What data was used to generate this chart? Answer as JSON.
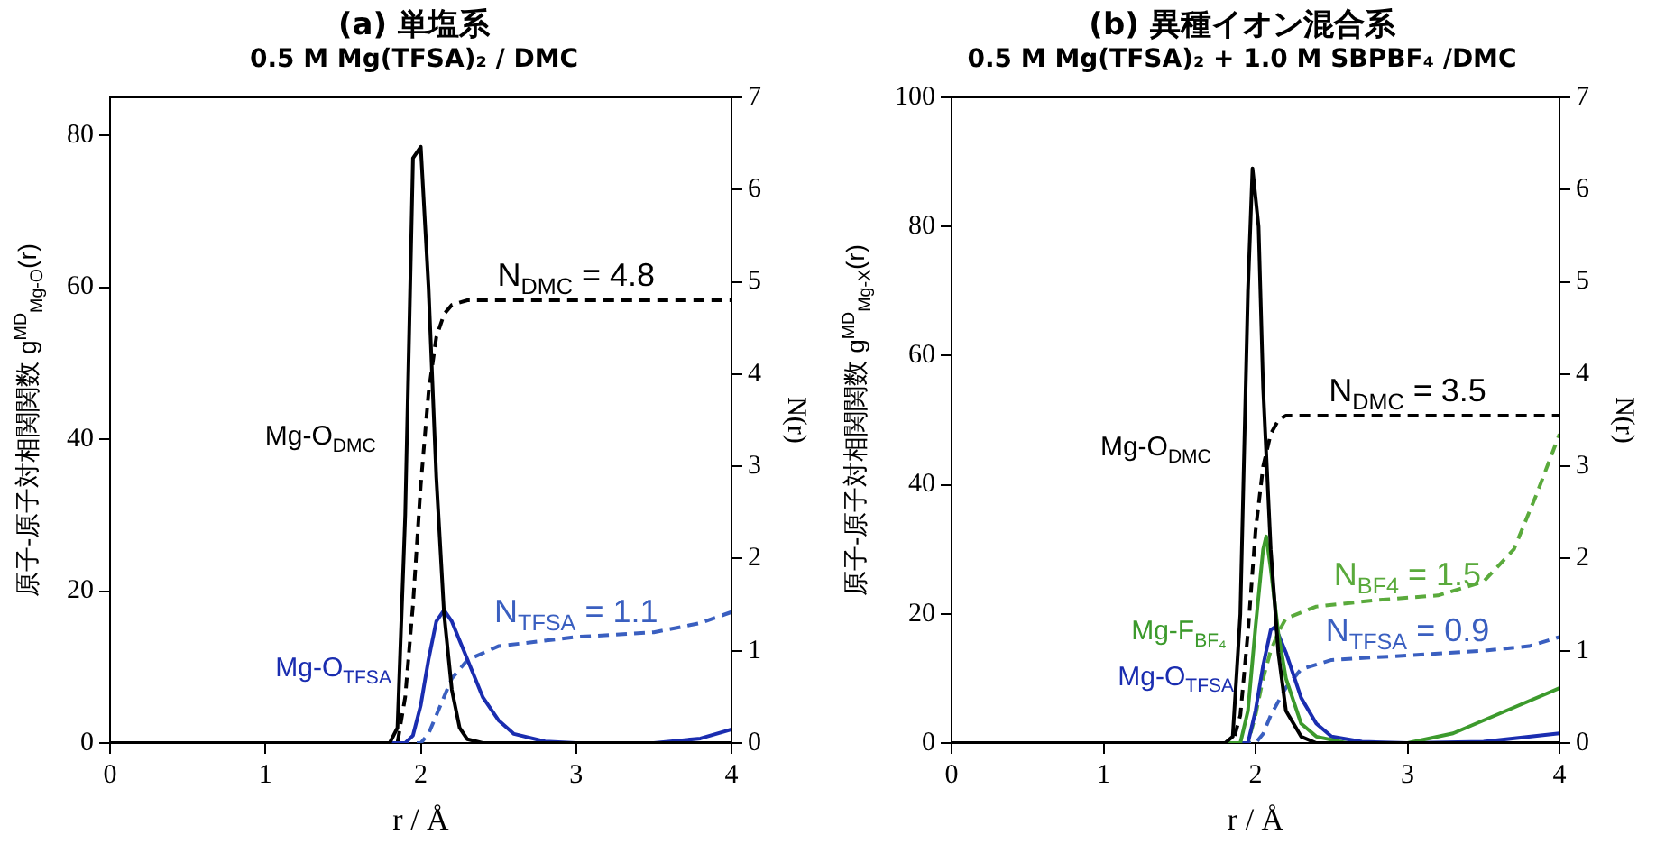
{
  "chart_data": [
    {
      "type": "line",
      "title": "(a) 単塩系",
      "subtitle": "0.5 M Mg(TFSA)₂ / DMC",
      "xlabel": "r / Å",
      "ylabel": "原子-原子対相関関数 g$^{MD}$$_{Mg-O}$(r)",
      "y2label": "N(r)",
      "xlim": [
        0,
        4
      ],
      "xticks": [
        0,
        1,
        2,
        3,
        4
      ],
      "ylim": [
        0,
        85
      ],
      "yticks": [
        0,
        20,
        40,
        60,
        80
      ],
      "y2lim": [
        0,
        7
      ],
      "y2ticks": [
        0,
        1,
        2,
        3,
        4,
        5,
        6,
        7
      ],
      "series": [
        {
          "name": "Mg-O$_{DMC}$",
          "color": "#000000",
          "line_style": "solid",
          "x": [
            0,
            1.8,
            1.85,
            1.9,
            1.95,
            2.0,
            2.05,
            2.1,
            2.15,
            2.2,
            2.25,
            2.3,
            2.4,
            4
          ],
          "values": [
            0,
            0,
            2,
            30,
            77,
            78.5,
            60,
            35,
            17,
            7,
            2,
            0.5,
            0,
            0
          ]
        },
        {
          "name": "Mg-O$_{TFSA}$",
          "color": "#1a2db0",
          "line_style": "solid",
          "x": [
            0,
            1.9,
            1.95,
            2.0,
            2.05,
            2.1,
            2.15,
            2.2,
            2.3,
            2.4,
            2.5,
            2.6,
            2.8,
            3.0,
            3.5,
            3.8,
            4.0
          ],
          "values": [
            0,
            0,
            1,
            5,
            11,
            16,
            17.5,
            16,
            11,
            6,
            3,
            1.2,
            0.2,
            0,
            0,
            0.6,
            1.8
          ]
        },
        {
          "name": "N$_{DMC}$ = 4.8",
          "color": "#000000",
          "line_style": "dashed",
          "axis": "y2",
          "x": [
            0,
            1.85,
            1.9,
            1.95,
            2.0,
            2.05,
            2.1,
            2.15,
            2.2,
            2.3,
            4
          ],
          "values": [
            0,
            0,
            0.5,
            1.5,
            2.8,
            3.8,
            4.4,
            4.65,
            4.75,
            4.8,
            4.8
          ]
        },
        {
          "name": "N$_{TFSA}$ = 1.1",
          "color": "#3a5fc0",
          "line_style": "dashed",
          "axis": "y2",
          "x": [
            0,
            2.0,
            2.05,
            2.1,
            2.15,
            2.2,
            2.3,
            2.5,
            3.0,
            3.5,
            3.8,
            4.0
          ],
          "values": [
            0,
            0,
            0.1,
            0.3,
            0.5,
            0.7,
            0.9,
            1.05,
            1.15,
            1.2,
            1.3,
            1.42
          ]
        }
      ]
    },
    {
      "type": "line",
      "title": "(b) 異種イオン混合系",
      "subtitle": "0.5 M Mg(TFSA)₂ + 1.0 M SBPBF₄ /DMC",
      "xlabel": "r / Å",
      "ylabel": "原子-原子対相関関数 g$^{MD}$$_{Mg-X}$(r)",
      "y2label": "N(r)",
      "xlim": [
        0,
        4
      ],
      "xticks": [
        0,
        1,
        2,
        3,
        4
      ],
      "ylim": [
        0,
        100
      ],
      "yticks": [
        0,
        20,
        40,
        60,
        80,
        100
      ],
      "y2lim": [
        0,
        7
      ],
      "y2ticks": [
        0,
        1,
        2,
        3,
        4,
        5,
        6,
        7
      ],
      "series": [
        {
          "name": "Mg-O$_{DMC}$",
          "color": "#000000",
          "line_style": "solid",
          "x": [
            0,
            1.8,
            1.85,
            1.9,
            1.95,
            1.98,
            2.02,
            2.05,
            2.1,
            2.15,
            2.2,
            2.3,
            2.4,
            4
          ],
          "values": [
            0,
            0,
            1,
            20,
            70,
            89,
            80,
            55,
            30,
            14,
            5,
            1,
            0,
            0
          ]
        },
        {
          "name": "Mg-F$_{BF₄}$",
          "color": "#3c9a2c",
          "line_style": "solid",
          "x": [
            0,
            1.9,
            1.95,
            2.0,
            2.05,
            2.07,
            2.1,
            2.15,
            2.2,
            2.3,
            2.4,
            2.6,
            3.0,
            3.3,
            3.6,
            4.0
          ],
          "values": [
            0,
            0,
            5,
            18,
            30,
            32,
            27,
            17,
            10,
            3,
            1,
            0,
            0,
            1.5,
            4.5,
            8.5
          ]
        },
        {
          "name": "Mg-O$_{TFSA}$",
          "color": "#1a2db0",
          "line_style": "solid",
          "x": [
            0,
            1.95,
            2.0,
            2.05,
            2.1,
            2.13,
            2.2,
            2.3,
            2.4,
            2.5,
            2.7,
            3.0,
            3.5,
            4.0
          ],
          "values": [
            0,
            0,
            5,
            12,
            17.5,
            18,
            14,
            7,
            3,
            1,
            0.2,
            0,
            0.2,
            1.5
          ]
        },
        {
          "name": "N$_{DMC}$ = 3.5",
          "color": "#000000",
          "line_style": "dashed",
          "axis": "y2",
          "x": [
            0,
            1.85,
            1.9,
            1.95,
            2.0,
            2.05,
            2.1,
            2.15,
            2.2,
            4
          ],
          "values": [
            0,
            0,
            0.3,
            1.2,
            2.3,
            3.0,
            3.35,
            3.5,
            3.55,
            3.55
          ]
        },
        {
          "name": "N$_{BF4}$ = 1.5",
          "color": "#5aaa3c",
          "line_style": "dashed",
          "axis": "y2",
          "x": [
            0,
            1.95,
            2.0,
            2.05,
            2.1,
            2.15,
            2.2,
            2.4,
            2.8,
            3.2,
            3.5,
            3.7,
            3.85,
            4.0
          ],
          "values": [
            0,
            0,
            0.3,
            0.7,
            1.0,
            1.2,
            1.35,
            1.48,
            1.55,
            1.6,
            1.75,
            2.1,
            2.7,
            3.35
          ]
        },
        {
          "name": "N$_{TFSA}$ = 0.9",
          "color": "#3a5fc0",
          "line_style": "dashed",
          "axis": "y2",
          "x": [
            0,
            2.0,
            2.05,
            2.1,
            2.2,
            2.3,
            2.5,
            3.0,
            3.5,
            3.8,
            4.0
          ],
          "values": [
            0,
            0,
            0.1,
            0.3,
            0.6,
            0.8,
            0.9,
            0.95,
            1.0,
            1.05,
            1.15
          ]
        }
      ]
    }
  ]
}
